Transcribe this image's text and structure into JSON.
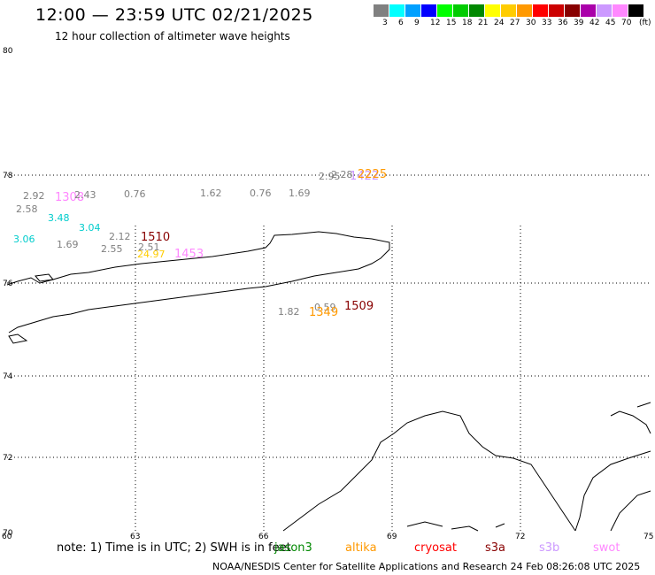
{
  "title": "12:00 — 23:59 UTC 02/21/2025",
  "subtitle": "12 hour collection of altimeter wave heights",
  "colorbar": {
    "unit_label": "(ft)",
    "bins": [
      {
        "label": "3",
        "color": "#808080"
      },
      {
        "label": "6",
        "color": "#00ffff"
      },
      {
        "label": "9",
        "color": "#00a0ff"
      },
      {
        "label": "12",
        "color": "#0000ff"
      },
      {
        "label": "15",
        "color": "#00ff00"
      },
      {
        "label": "18",
        "color": "#00cc00"
      },
      {
        "label": "21",
        "color": "#008800"
      },
      {
        "label": "24",
        "color": "#ffff00"
      },
      {
        "label": "27",
        "color": "#ffcc00"
      },
      {
        "label": "30",
        "color": "#ff9900"
      },
      {
        "label": "33",
        "color": "#ff0000"
      },
      {
        "label": "36",
        "color": "#cc0000"
      },
      {
        "label": "39",
        "color": "#880000"
      },
      {
        "label": "42",
        "color": "#aa00aa"
      },
      {
        "label": "45",
        "color": "#cc99ff"
      },
      {
        "label": "70",
        "color": "#ff88ff"
      },
      {
        "label": "",
        "color": "#000000"
      }
    ]
  },
  "axes": {
    "lat_labels": [
      "80",
      "78",
      "76",
      "74",
      "72",
      "70"
    ],
    "lon_labels": [
      "60",
      "63",
      "66",
      "69",
      "72",
      "75"
    ]
  },
  "observations": [
    {
      "text": "2.92",
      "color": "#808080"
    },
    {
      "text": "1308",
      "color": "#ff88ff"
    },
    {
      "text": "2.43",
      "color": "#808080"
    },
    {
      "text": "0.76",
      "color": "#808080"
    },
    {
      "text": "1.62",
      "color": "#808080"
    },
    {
      "text": "0.76",
      "color": "#808080"
    },
    {
      "text": "1.69",
      "color": "#808080"
    },
    {
      "text": "2.58",
      "color": "#808080"
    },
    {
      "text": "3.48",
      "color": "#00cccc"
    },
    {
      "text": "3.04",
      "color": "#00cccc"
    },
    {
      "text": "3.06",
      "color": "#00cccc"
    },
    {
      "text": "1.69",
      "color": "#808080"
    },
    {
      "text": "2.12",
      "color": "#808080"
    },
    {
      "text": "1510",
      "color": "#880000"
    },
    {
      "text": "2.55",
      "color": "#808080"
    },
    {
      "text": "2.51",
      "color": "#808080"
    },
    {
      "text": "24.97",
      "color": "#ffcc00"
    },
    {
      "text": "1453",
      "color": "#ff88ff"
    },
    {
      "text": "2.95",
      "color": "#808080"
    },
    {
      "text": "2.28",
      "color": "#808080"
    },
    {
      "text": "1422",
      "color": "#cc99ff"
    },
    {
      "text": "2225",
      "color": "#ff9900"
    },
    {
      "text": "1.82",
      "color": "#808080"
    },
    {
      "text": "0.59",
      "color": "#808080"
    },
    {
      "text": "1349",
      "color": "#ff9900"
    },
    {
      "text": "1509",
      "color": "#880000"
    }
  ],
  "note": "note: 1) Time is in UTC; 2) SWH is in feet",
  "legend": [
    {
      "name": "jason3",
      "color": "#008800"
    },
    {
      "name": "altika",
      "color": "#ff9900"
    },
    {
      "name": "cryosat",
      "color": "#ff0000"
    },
    {
      "name": "s3a",
      "color": "#880000"
    },
    {
      "name": "s3b",
      "color": "#cc99ff"
    },
    {
      "name": "swot",
      "color": "#ff88ff"
    }
  ],
  "footer": "NOAA/NESDIS Center for Satellite Applications and Research    24 Feb 08:26:08 UTC 2025"
}
